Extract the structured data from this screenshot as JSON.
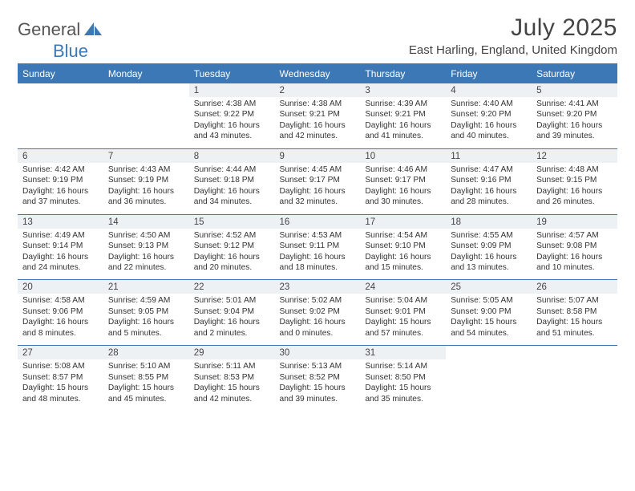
{
  "logo": {
    "part1": "General",
    "part2": "Blue"
  },
  "title": "July 2025",
  "location": "East Harling, England, United Kingdom",
  "colors": {
    "brand_blue": "#3b78b5",
    "daynum_bg": "#eef1f4",
    "text": "#333333",
    "bg": "#ffffff"
  },
  "day_headers": [
    "Sunday",
    "Monday",
    "Tuesday",
    "Wednesday",
    "Thursday",
    "Friday",
    "Saturday"
  ],
  "weeks": [
    [
      null,
      null,
      {
        "n": "1",
        "sr": "4:38 AM",
        "ss": "9:22 PM",
        "dl": "16 hours and 43 minutes."
      },
      {
        "n": "2",
        "sr": "4:38 AM",
        "ss": "9:21 PM",
        "dl": "16 hours and 42 minutes."
      },
      {
        "n": "3",
        "sr": "4:39 AM",
        "ss": "9:21 PM",
        "dl": "16 hours and 41 minutes."
      },
      {
        "n": "4",
        "sr": "4:40 AM",
        "ss": "9:20 PM",
        "dl": "16 hours and 40 minutes."
      },
      {
        "n": "5",
        "sr": "4:41 AM",
        "ss": "9:20 PM",
        "dl": "16 hours and 39 minutes."
      }
    ],
    [
      {
        "n": "6",
        "sr": "4:42 AM",
        "ss": "9:19 PM",
        "dl": "16 hours and 37 minutes."
      },
      {
        "n": "7",
        "sr": "4:43 AM",
        "ss": "9:19 PM",
        "dl": "16 hours and 36 minutes."
      },
      {
        "n": "8",
        "sr": "4:44 AM",
        "ss": "9:18 PM",
        "dl": "16 hours and 34 minutes."
      },
      {
        "n": "9",
        "sr": "4:45 AM",
        "ss": "9:17 PM",
        "dl": "16 hours and 32 minutes."
      },
      {
        "n": "10",
        "sr": "4:46 AM",
        "ss": "9:17 PM",
        "dl": "16 hours and 30 minutes."
      },
      {
        "n": "11",
        "sr": "4:47 AM",
        "ss": "9:16 PM",
        "dl": "16 hours and 28 minutes."
      },
      {
        "n": "12",
        "sr": "4:48 AM",
        "ss": "9:15 PM",
        "dl": "16 hours and 26 minutes."
      }
    ],
    [
      {
        "n": "13",
        "sr": "4:49 AM",
        "ss": "9:14 PM",
        "dl": "16 hours and 24 minutes."
      },
      {
        "n": "14",
        "sr": "4:50 AM",
        "ss": "9:13 PM",
        "dl": "16 hours and 22 minutes."
      },
      {
        "n": "15",
        "sr": "4:52 AM",
        "ss": "9:12 PM",
        "dl": "16 hours and 20 minutes."
      },
      {
        "n": "16",
        "sr": "4:53 AM",
        "ss": "9:11 PM",
        "dl": "16 hours and 18 minutes."
      },
      {
        "n": "17",
        "sr": "4:54 AM",
        "ss": "9:10 PM",
        "dl": "16 hours and 15 minutes."
      },
      {
        "n": "18",
        "sr": "4:55 AM",
        "ss": "9:09 PM",
        "dl": "16 hours and 13 minutes."
      },
      {
        "n": "19",
        "sr": "4:57 AM",
        "ss": "9:08 PM",
        "dl": "16 hours and 10 minutes."
      }
    ],
    [
      {
        "n": "20",
        "sr": "4:58 AM",
        "ss": "9:06 PM",
        "dl": "16 hours and 8 minutes."
      },
      {
        "n": "21",
        "sr": "4:59 AM",
        "ss": "9:05 PM",
        "dl": "16 hours and 5 minutes."
      },
      {
        "n": "22",
        "sr": "5:01 AM",
        "ss": "9:04 PM",
        "dl": "16 hours and 2 minutes."
      },
      {
        "n": "23",
        "sr": "5:02 AM",
        "ss": "9:02 PM",
        "dl": "16 hours and 0 minutes."
      },
      {
        "n": "24",
        "sr": "5:04 AM",
        "ss": "9:01 PM",
        "dl": "15 hours and 57 minutes."
      },
      {
        "n": "25",
        "sr": "5:05 AM",
        "ss": "9:00 PM",
        "dl": "15 hours and 54 minutes."
      },
      {
        "n": "26",
        "sr": "5:07 AM",
        "ss": "8:58 PM",
        "dl": "15 hours and 51 minutes."
      }
    ],
    [
      {
        "n": "27",
        "sr": "5:08 AM",
        "ss": "8:57 PM",
        "dl": "15 hours and 48 minutes."
      },
      {
        "n": "28",
        "sr": "5:10 AM",
        "ss": "8:55 PM",
        "dl": "15 hours and 45 minutes."
      },
      {
        "n": "29",
        "sr": "5:11 AM",
        "ss": "8:53 PM",
        "dl": "15 hours and 42 minutes."
      },
      {
        "n": "30",
        "sr": "5:13 AM",
        "ss": "8:52 PM",
        "dl": "15 hours and 39 minutes."
      },
      {
        "n": "31",
        "sr": "5:14 AM",
        "ss": "8:50 PM",
        "dl": "15 hours and 35 minutes."
      },
      null,
      null
    ]
  ],
  "labels": {
    "sunrise": "Sunrise:",
    "sunset": "Sunset:",
    "daylight": "Daylight:"
  }
}
